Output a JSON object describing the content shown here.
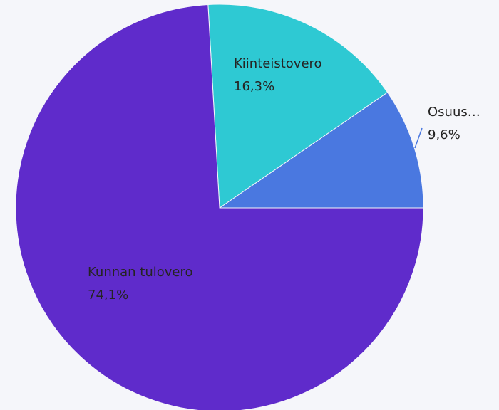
{
  "chart_data": {
    "type": "pie",
    "categories": [
      "Osuus…",
      "Kiinteistovero",
      "Kunnan tulovero"
    ],
    "values": [
      9.6,
      16.3,
      74.1
    ],
    "value_labels": [
      "9,6%",
      "16,3%",
      "74,1%"
    ],
    "colors": [
      "#4a78e0",
      "#2ec9d3",
      "#5f2bcb"
    ]
  }
}
